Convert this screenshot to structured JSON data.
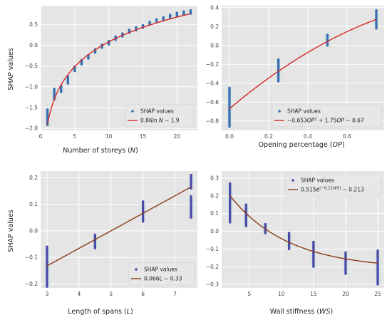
{
  "chart_data": [
    {
      "type": "scatter",
      "xlabel": "Number of storeys (N)",
      "ylabel": "SHAP values",
      "xlim": [
        0,
        23
      ],
      "ylim": [
        -2.05,
        0.95
      ],
      "xticks": [
        0,
        5,
        10,
        15,
        20
      ],
      "yticks": [
        -2.0,
        -1.5,
        -1.0,
        -0.5,
        0.0,
        0.5
      ],
      "grid": true,
      "legend_position": "lower-right",
      "scatter_color": "#3a6eb0",
      "fit_color": "#d62728",
      "series": [
        {
          "name": "SHAP values",
          "kind": "points",
          "clusters": [
            {
              "x": 1,
              "y_min": -1.92,
              "y_max": -1.55
            },
            {
              "x": 2,
              "y_min": -1.3,
              "y_max": -1.05
            },
            {
              "x": 3,
              "y_min": -1.12,
              "y_max": -0.98
            },
            {
              "x": 4,
              "y_min": -0.92,
              "y_max": -0.75
            },
            {
              "x": 5,
              "y_min": -0.62,
              "y_max": -0.52
            },
            {
              "x": 6,
              "y_min": -0.46,
              "y_max": -0.36
            },
            {
              "x": 7,
              "y_min": -0.32,
              "y_max": -0.24
            },
            {
              "x": 8,
              "y_min": -0.18,
              "y_max": -0.1
            },
            {
              "x": 9,
              "y_min": -0.06,
              "y_max": 0.01
            },
            {
              "x": 10,
              "y_min": 0.02,
              "y_max": 0.1
            },
            {
              "x": 11,
              "y_min": 0.13,
              "y_max": 0.21
            },
            {
              "x": 12,
              "y_min": 0.21,
              "y_max": 0.28
            },
            {
              "x": 13,
              "y_min": 0.3,
              "y_max": 0.37
            },
            {
              "x": 14,
              "y_min": 0.36,
              "y_max": 0.43
            },
            {
              "x": 15,
              "y_min": 0.42,
              "y_max": 0.48
            },
            {
              "x": 16,
              "y_min": 0.5,
              "y_max": 0.56
            },
            {
              "x": 17,
              "y_min": 0.56,
              "y_max": 0.62
            },
            {
              "x": 18,
              "y_min": 0.6,
              "y_max": 0.67
            },
            {
              "x": 19,
              "y_min": 0.66,
              "y_max": 0.73
            },
            {
              "x": 20,
              "y_min": 0.7,
              "y_max": 0.78
            },
            {
              "x": 21,
              "y_min": 0.74,
              "y_max": 0.81
            },
            {
              "x": 22,
              "y_min": 0.76,
              "y_max": 0.84
            }
          ]
        },
        {
          "name": "0.86ln N − 1.9",
          "kind": "fit",
          "equation": "0.86*ln(x) - 1.9",
          "x_range": [
            1,
            22
          ]
        }
      ]
    },
    {
      "type": "scatter",
      "xlabel": "Opening percentage (OP)",
      "ylabel": "",
      "xlim": [
        -0.04,
        0.79
      ],
      "ylim": [
        -0.9,
        0.42
      ],
      "xticks": [
        0.0,
        0.2,
        0.4,
        0.6
      ],
      "yticks": [
        -0.8,
        -0.6,
        -0.4,
        -0.2,
        0.0,
        0.2,
        0.4
      ],
      "grid": true,
      "legend_position": "lower-right",
      "scatter_color": "#3a6eb0",
      "fit_color": "#d62728",
      "series": [
        {
          "name": "SHAP values",
          "kind": "points",
          "clusters": [
            {
              "x": 0.0,
              "y_min": -0.86,
              "y_max": -0.45
            },
            {
              "x": 0.25,
              "y_min": -0.38,
              "y_max": -0.15
            },
            {
              "x": 0.5,
              "y_min": 0.0,
              "y_max": 0.11
            },
            {
              "x": 0.75,
              "y_min": 0.18,
              "y_max": 0.37
            }
          ]
        },
        {
          "name": "−0.653OP² + 1.75OP − 0.67",
          "kind": "fit",
          "equation": "-0.653*x^2 + 1.75*x - 0.67",
          "x_range": [
            0,
            0.75
          ]
        }
      ]
    },
    {
      "type": "scatter",
      "xlabel": "Length of spans (L)",
      "ylabel": "SHAP values",
      "xlim": [
        2.8,
        7.7
      ],
      "ylim": [
        -0.215,
        0.225
      ],
      "xticks": [
        3,
        4,
        5,
        6,
        7
      ],
      "yticks": [
        -0.2,
        -0.1,
        0.0,
        0.1,
        0.2
      ],
      "grid": true,
      "legend_position": "lower-right",
      "scatter_color": "#4a4aa8",
      "fit_color": "#8b3a1a",
      "series": [
        {
          "name": "SHAP values",
          "kind": "points",
          "clusters": [
            {
              "x": 3.0,
              "y_min": -0.21,
              "y_max": -0.06
            },
            {
              "x": 4.5,
              "y_min": -0.065,
              "y_max": -0.015
            },
            {
              "x": 6.0,
              "y_min": 0.035,
              "y_max": 0.11
            },
            {
              "x": 7.5,
              "y_min": 0.05,
              "y_max": 0.13
            },
            {
              "x": 7.5,
              "y_min": 0.16,
              "y_max": 0.21
            }
          ]
        },
        {
          "name": "0.066L − 0.33",
          "kind": "fit",
          "equation": "0.066*x - 0.33",
          "x_range": [
            3,
            7.5
          ]
        }
      ]
    },
    {
      "type": "scatter",
      "xlabel": "Wall stiffness (WS)",
      "ylabel": "",
      "xlim": [
        0.7,
        26.0
      ],
      "ylim": [
        -0.32,
        0.34
      ],
      "xticks": [
        5,
        10,
        15,
        20,
        25
      ],
      "yticks": [
        -0.3,
        -0.2,
        -0.1,
        0.0,
        0.1,
        0.2,
        0.3
      ],
      "grid": true,
      "legend_position": "upper-right",
      "scatter_color": "#4a4aa8",
      "fit_color": "#8b3a1a",
      "series": [
        {
          "name": "SHAP values",
          "kind": "points",
          "clusters": [
            {
              "x": 2.0,
              "y_min": 0.05,
              "y_max": 0.27
            },
            {
              "x": 4.5,
              "y_min": 0.03,
              "y_max": 0.15
            },
            {
              "x": 7.5,
              "y_min": -0.01,
              "y_max": 0.04
            },
            {
              "x": 11.2,
              "y_min": -0.1,
              "y_max": -0.01
            },
            {
              "x": 15.0,
              "y_min": -0.2,
              "y_max": -0.06
            },
            {
              "x": 20.0,
              "y_min": -0.24,
              "y_max": -0.12
            },
            {
              "x": 25.0,
              "y_min": -0.3,
              "y_max": -0.11
            }
          ]
        },
        {
          "name": "0.515e^(−0.11WS) − 0.213",
          "kind": "fit",
          "equation": "0.515*exp(-0.11*x) - 0.213",
          "x_range": [
            2,
            25
          ]
        }
      ]
    }
  ]
}
